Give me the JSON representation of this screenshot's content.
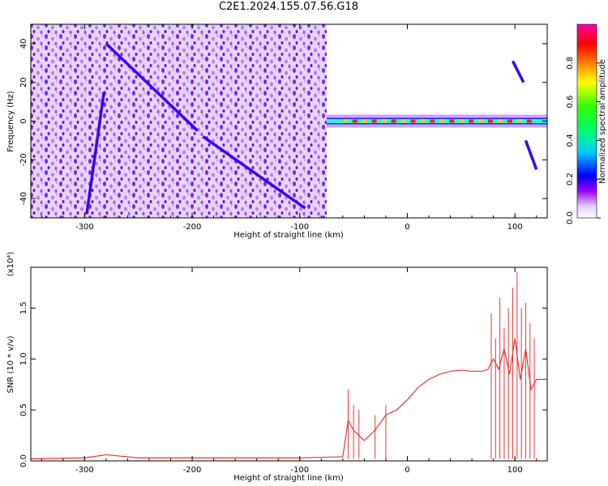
{
  "title": "C2E1.2024.155.07.56.G18",
  "chart_data": [
    {
      "type": "heatmap",
      "xlabel": "Height of straight line (km)",
      "ylabel": "Frequency (Hz)",
      "xlim": [
        -350,
        130
      ],
      "ylim": [
        -50,
        50
      ],
      "xticks": [
        -300,
        -200,
        -100,
        0,
        100
      ],
      "yticks": [
        -40,
        -20,
        0,
        20,
        40
      ],
      "colorbar": {
        "label": "Normalized spectral amplitude",
        "range": [
          0,
          1
        ],
        "ticks": [
          "0.0",
          "0.2",
          "0.4",
          "0.6",
          "0.8"
        ]
      },
      "features": [
        {
          "kind": "noise_region",
          "x": [
            -350,
            -75
          ],
          "y": [
            -50,
            50
          ]
        },
        {
          "kind": "streak",
          "x": [
            -298,
            -282
          ],
          "y": [
            -48,
            15
          ]
        },
        {
          "kind": "streak",
          "x": [
            -280,
            -195
          ],
          "y": [
            40,
            -5
          ]
        },
        {
          "kind": "streak",
          "x": [
            -190,
            -95
          ],
          "y": [
            -8,
            -45
          ]
        },
        {
          "kind": "carrier",
          "x": [
            -75,
            130
          ],
          "y": [
            0,
            0
          ]
        },
        {
          "kind": "streak",
          "x": [
            98,
            108
          ],
          "y": [
            31,
            20
          ]
        },
        {
          "kind": "streak",
          "x": [
            110,
            120
          ],
          "y": [
            -10,
            -25
          ]
        }
      ]
    },
    {
      "type": "line",
      "xlabel": "Height of straight line (km)",
      "ylabel": "SNR (10 * v/v)",
      "yscale_label": "(x10⁴)",
      "xlim": [
        -350,
        130
      ],
      "ylim": [
        0,
        1.9
      ],
      "xticks": [
        -300,
        -200,
        -100,
        0,
        100
      ],
      "yticks": [
        "0.0",
        "0.5",
        "1.0",
        "1.5"
      ],
      "color": "#ee3333",
      "series": [
        {
          "x": [
            -350,
            -300,
            -280,
            -250,
            -200,
            -150,
            -100,
            -60,
            -55,
            -50,
            -40,
            -30,
            -20,
            -10,
            0,
            10,
            20,
            30,
            40,
            50,
            60,
            70,
            75,
            80,
            85,
            90,
            95,
            100,
            105,
            110,
            115,
            120,
            130
          ],
          "y": [
            0.02,
            0.03,
            0.06,
            0.03,
            0.03,
            0.03,
            0.03,
            0.04,
            0.4,
            0.3,
            0.2,
            0.3,
            0.45,
            0.5,
            0.6,
            0.72,
            0.8,
            0.85,
            0.88,
            0.89,
            0.88,
            0.88,
            0.9,
            1.0,
            0.9,
            1.1,
            0.85,
            1.2,
            0.8,
            1.1,
            0.7,
            0.8,
            0.8
          ]
        }
      ]
    }
  ]
}
